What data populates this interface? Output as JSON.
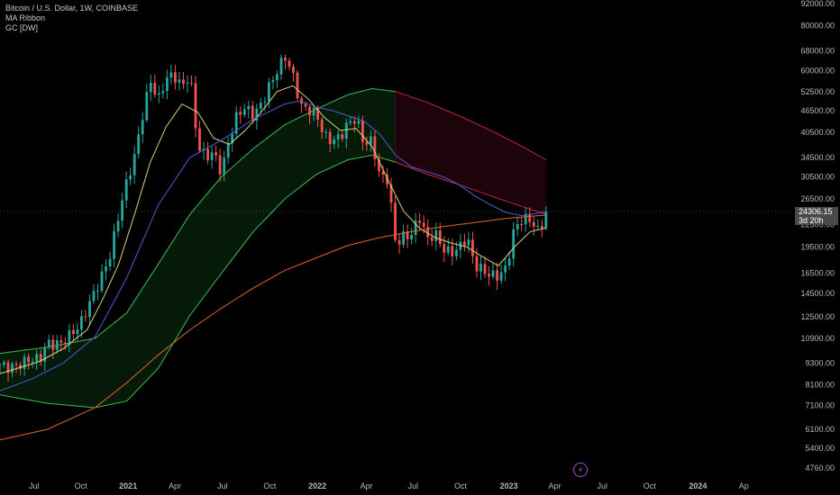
{
  "legend": {
    "symbol": "Bitcoin / U.S. Dollar, 1W, COINBASE",
    "indicator_1": "MA Ribbon",
    "indicator_2": "GC [DW]"
  },
  "price_badge": {
    "price": "24306.15",
    "countdown": "3d 20h"
  },
  "colors": {
    "background": "#000000",
    "candle_up": "#26a69a",
    "candle_down": "#ef5350",
    "ma_yellow": "#d7d27a",
    "ma_blue": "#4a5fd0",
    "ma_orange": "#e0652c",
    "band_green": "#3bbf4f",
    "band_red": "#c2284c",
    "icon_purple": "#a34ad3"
  },
  "icons": {
    "bottom_marker": "flash-icon"
  },
  "chart_data": {
    "type": "candlestick",
    "y_scale": "log",
    "ylim": [
      4500,
      92000
    ],
    "xlim": [
      0,
      100
    ],
    "y_ticks": [
      "92000.00",
      "80000.00",
      "68000.00",
      "60000.00",
      "52500.00",
      "46500.00",
      "40500.00",
      "34500.00",
      "30500.00",
      "26500.00",
      "22500.00",
      "19500.00",
      "16500.00",
      "14500.00",
      "12500.00",
      "10900.00",
      "9300.00",
      "8100.00",
      "7100.00",
      "6100.00",
      "5400.00",
      "4760.00"
    ],
    "x_ticks": [
      {
        "label": "Jul",
        "t": 4.3
      },
      {
        "label": "Oct",
        "t": 10.2
      },
      {
        "label": "2021",
        "t": 16.2
      },
      {
        "label": "Apr",
        "t": 22.1
      },
      {
        "label": "Jul",
        "t": 28.1
      },
      {
        "label": "Oct",
        "t": 34.1
      },
      {
        "label": "2022",
        "t": 40.1
      },
      {
        "label": "Apr",
        "t": 46.3
      },
      {
        "label": "Jul",
        "t": 52.2
      },
      {
        "label": "Oct",
        "t": 58.2
      },
      {
        "label": "2023",
        "t": 64.3
      },
      {
        "label": "Apr",
        "t": 70.1
      },
      {
        "label": "Jul",
        "t": 76.1
      },
      {
        "label": "Oct",
        "t": 82.1
      },
      {
        "label": "2024",
        "t": 88.2
      },
      {
        "label": "Ap",
        "t": 94.0
      }
    ],
    "price_anchors": [
      [
        0,
        9200
      ],
      [
        3,
        9300
      ],
      [
        5,
        9400
      ],
      [
        6,
        10700
      ],
      [
        8,
        10700
      ],
      [
        10,
        11500
      ],
      [
        12,
        15000
      ],
      [
        14,
        18700
      ],
      [
        15,
        23500
      ],
      [
        16,
        29000
      ],
      [
        17,
        35000
      ],
      [
        18,
        46000
      ],
      [
        19,
        57000
      ],
      [
        20,
        49000
      ],
      [
        21,
        56000
      ],
      [
        22,
        58000
      ],
      [
        23,
        55000
      ],
      [
        24,
        60000
      ],
      [
        25,
        37000
      ],
      [
        26,
        34000
      ],
      [
        27,
        35000
      ],
      [
        28,
        31500
      ],
      [
        29,
        40000
      ],
      [
        30,
        46000
      ],
      [
        31,
        47000
      ],
      [
        32,
        44000
      ],
      [
        33,
        48000
      ],
      [
        34,
        55000
      ],
      [
        35,
        61000
      ],
      [
        36,
        66000
      ],
      [
        37,
        57500
      ],
      [
        38,
        47000
      ],
      [
        39,
        47000
      ],
      [
        40,
        46500
      ],
      [
        41,
        40000
      ],
      [
        42,
        38000
      ],
      [
        43,
        38500
      ],
      [
        44,
        42500
      ],
      [
        45,
        45000
      ],
      [
        46,
        38500
      ],
      [
        47,
        38500
      ],
      [
        48,
        30000
      ],
      [
        49,
        29500
      ],
      [
        50,
        20000
      ],
      [
        51,
        21200
      ],
      [
        52,
        21500
      ],
      [
        53,
        23500
      ],
      [
        54,
        20000
      ],
      [
        55,
        21000
      ],
      [
        56,
        19500
      ],
      [
        57,
        19200
      ],
      [
        58,
        19500
      ],
      [
        59,
        20500
      ],
      [
        60,
        17000
      ],
      [
        61,
        16800
      ],
      [
        62,
        16600
      ],
      [
        63,
        16500
      ],
      [
        64,
        17000
      ],
      [
        65,
        21500
      ],
      [
        66,
        23000
      ],
      [
        67,
        23500
      ],
      [
        68,
        22000
      ],
      [
        69,
        24306
      ]
    ],
    "moving_averages": [
      {
        "color": "#d7d27a",
        "points": [
          [
            0,
            8700
          ],
          [
            5,
            9400
          ],
          [
            8,
            10200
          ],
          [
            11,
            11500
          ],
          [
            13,
            14000
          ],
          [
            15,
            17500
          ],
          [
            17,
            24000
          ],
          [
            19,
            33500
          ],
          [
            21,
            42000
          ],
          [
            23,
            48500
          ],
          [
            25,
            46000
          ],
          [
            27,
            39000
          ],
          [
            29,
            37500
          ],
          [
            31,
            41000
          ],
          [
            33,
            46000
          ],
          [
            35,
            52500
          ],
          [
            37,
            54500
          ],
          [
            39,
            50000
          ],
          [
            41,
            44500
          ],
          [
            43,
            41000
          ],
          [
            45,
            41500
          ],
          [
            47,
            37000
          ],
          [
            49,
            30000
          ],
          [
            51,
            24500
          ],
          [
            53,
            22000
          ],
          [
            55,
            20700
          ],
          [
            57,
            20000
          ],
          [
            59,
            19500
          ],
          [
            61,
            18300
          ],
          [
            63,
            17300
          ],
          [
            65,
            19500
          ],
          [
            67,
            21500
          ],
          [
            69,
            22000
          ]
        ]
      },
      {
        "color": "#4a5fd0",
        "points": [
          [
            0,
            7800
          ],
          [
            4,
            8400
          ],
          [
            8,
            9300
          ],
          [
            12,
            11000
          ],
          [
            16,
            16000
          ],
          [
            20,
            25500
          ],
          [
            24,
            34500
          ],
          [
            28,
            38500
          ],
          [
            32,
            44000
          ],
          [
            36,
            48500
          ],
          [
            38,
            49500
          ],
          [
            40,
            47500
          ],
          [
            42,
            46500
          ],
          [
            44,
            45000
          ],
          [
            46,
            43500
          ],
          [
            48,
            40000
          ],
          [
            50,
            35000
          ],
          [
            52,
            32500
          ],
          [
            54,
            31500
          ],
          [
            56,
            30500
          ],
          [
            58,
            29000
          ],
          [
            60,
            27000
          ],
          [
            62,
            25500
          ],
          [
            64,
            24300
          ],
          [
            66,
            23800
          ],
          [
            68,
            24200
          ],
          [
            69,
            24400
          ]
        ]
      },
      {
        "color": "#e0652c",
        "points": [
          [
            0,
            5700
          ],
          [
            6,
            6100
          ],
          [
            12,
            7000
          ],
          [
            16,
            8200
          ],
          [
            20,
            9800
          ],
          [
            24,
            11500
          ],
          [
            28,
            13200
          ],
          [
            32,
            15000
          ],
          [
            36,
            16800
          ],
          [
            40,
            18200
          ],
          [
            44,
            19700
          ],
          [
            48,
            20700
          ],
          [
            52,
            21500
          ],
          [
            56,
            22200
          ],
          [
            60,
            22800
          ],
          [
            64,
            23400
          ],
          [
            69,
            23900
          ]
        ]
      }
    ],
    "band_upper": [
      [
        0,
        9900
      ],
      [
        6,
        10300
      ],
      [
        12,
        10900
      ],
      [
        16,
        12800
      ],
      [
        20,
        17500
      ],
      [
        24,
        24000
      ],
      [
        28,
        30500
      ],
      [
        32,
        36500
      ],
      [
        36,
        42500
      ],
      [
        40,
        47000
      ],
      [
        44,
        51500
      ],
      [
        47,
        53500
      ],
      [
        50,
        52500
      ],
      [
        54,
        49000
      ],
      [
        58,
        45000
      ],
      [
        62,
        41000
      ],
      [
        66,
        37000
      ],
      [
        69,
        34000
      ]
    ],
    "band_lower": [
      [
        0,
        7600
      ],
      [
        6,
        7200
      ],
      [
        12,
        7000
      ],
      [
        16,
        7300
      ],
      [
        20,
        9000
      ],
      [
        24,
        12600
      ],
      [
        28,
        16500
      ],
      [
        32,
        21500
      ],
      [
        36,
        26500
      ],
      [
        40,
        31000
      ],
      [
        44,
        34000
      ],
      [
        47,
        35000
      ],
      [
        50,
        33500
      ],
      [
        54,
        31000
      ],
      [
        58,
        29000
      ],
      [
        62,
        27000
      ],
      [
        66,
        25200
      ],
      [
        69,
        24000
      ]
    ],
    "band_turn_t": 50.0
  }
}
